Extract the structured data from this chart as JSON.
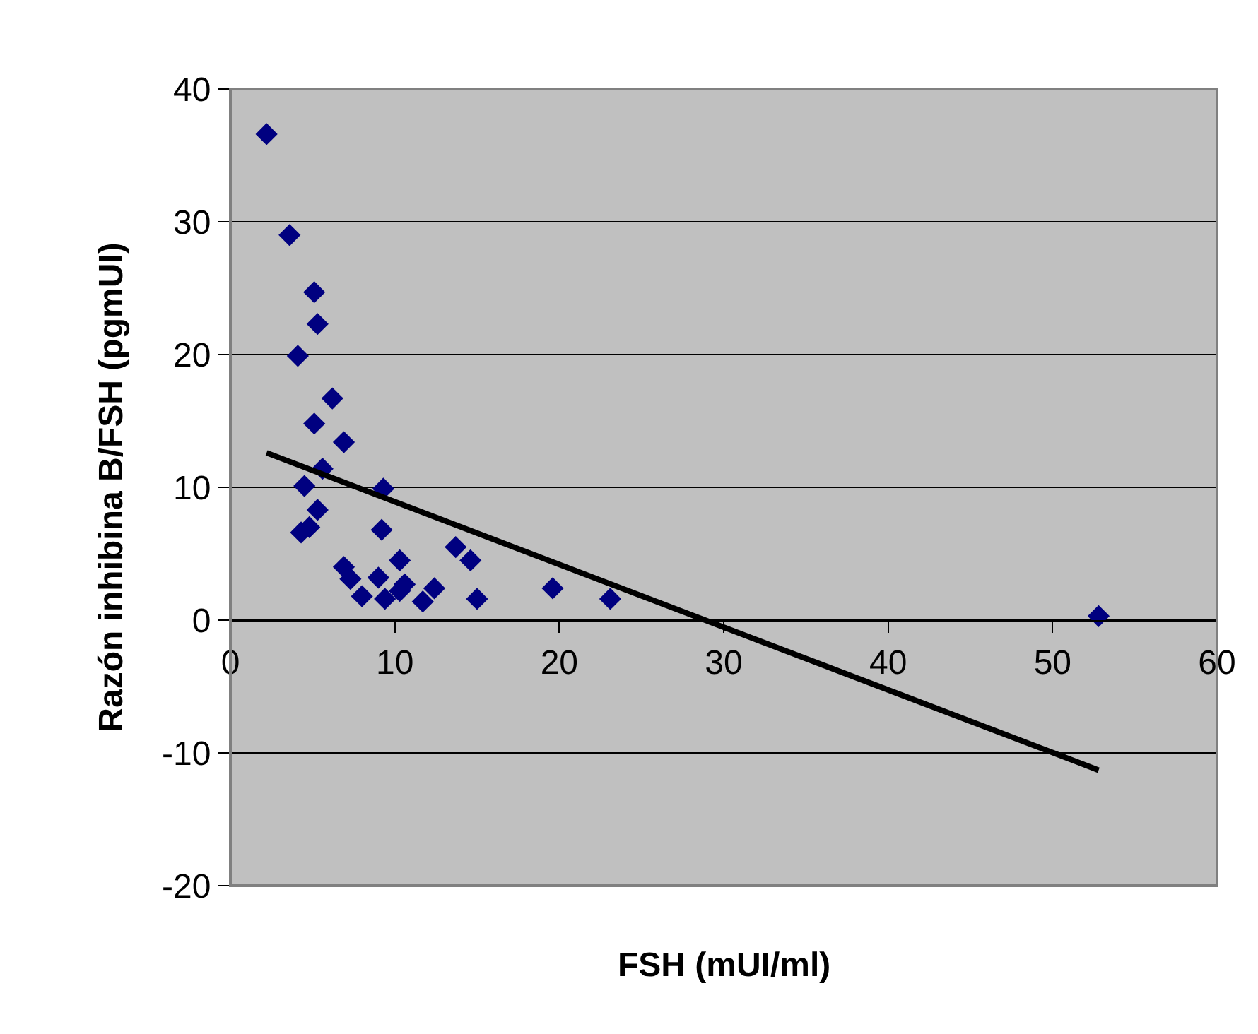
{
  "chart_data": {
    "type": "scatter",
    "xlabel": "FSH (mUI/ml)",
    "ylabel": "Razón inhibina B/FSH (pgmUI)",
    "xlim": [
      0,
      60
    ],
    "xticks": [
      0,
      10,
      20,
      30,
      40,
      50,
      60
    ],
    "ylim": [
      -20,
      40
    ],
    "yticks": [
      -20,
      -10,
      0,
      10,
      20,
      30,
      40
    ],
    "grid": "y",
    "marker": "diamond",
    "series": [
      {
        "color": "#000080",
        "x": [
          2.2,
          3.6,
          4.1,
          5.1,
          5.3,
          6.2,
          6.9,
          5.1,
          5.6,
          9.3,
          4.5,
          5.3,
          4.3,
          4.8,
          9.2,
          6.9,
          7.3,
          8.0,
          9.0,
          10.3,
          9.4,
          10.3,
          10.6,
          11.7,
          12.4,
          13.7,
          14.6,
          15.0,
          19.6,
          23.1,
          52.8
        ],
        "values": [
          36.6,
          29.0,
          19.9,
          24.7,
          22.3,
          16.7,
          13.4,
          14.8,
          11.4,
          9.9,
          10.1,
          8.3,
          6.6,
          7.0,
          6.8,
          4.0,
          3.1,
          1.8,
          3.2,
          4.5,
          1.6,
          2.2,
          2.7,
          1.4,
          2.4,
          5.5,
          4.5,
          1.6,
          2.4,
          1.6,
          0.3
        ]
      },
      {
        "type": "line",
        "color": "#000000",
        "marker": "none",
        "x": [
          2.2,
          52.8
        ],
        "values": [
          12.6,
          -11.3
        ]
      }
    ]
  }
}
